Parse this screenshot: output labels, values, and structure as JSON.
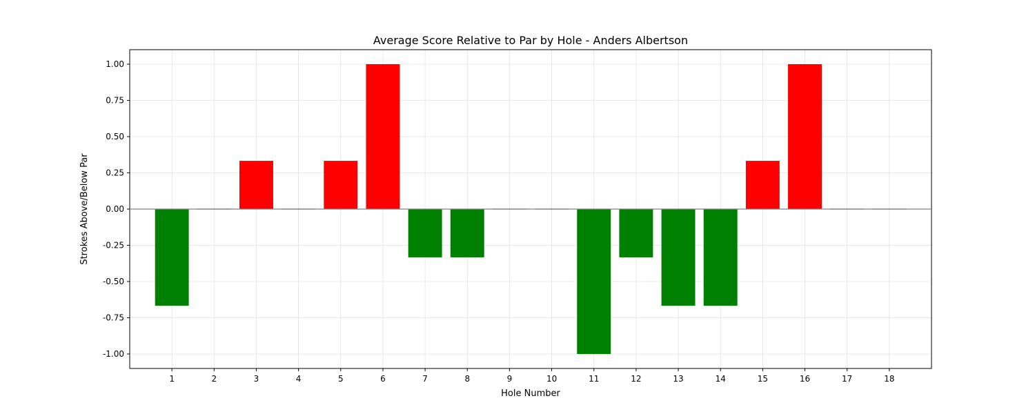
{
  "chart_data": {
    "type": "bar",
    "title": "Average Score Relative to Par by Hole - Anders Albertson",
    "xlabel": "Hole Number",
    "ylabel": "Strokes Above/Below Par",
    "categories": [
      "1",
      "2",
      "3",
      "4",
      "5",
      "6",
      "7",
      "8",
      "9",
      "10",
      "11",
      "12",
      "13",
      "14",
      "15",
      "16",
      "17",
      "18"
    ],
    "values": [
      -0.667,
      0,
      0.333,
      0,
      0.333,
      1.0,
      -0.333,
      -0.333,
      0,
      0,
      -1.0,
      -0.333,
      -0.667,
      -0.667,
      0.333,
      1.0,
      0,
      0
    ],
    "ylim": [
      -1.1,
      1.1
    ],
    "yticks": [
      "-1.00",
      "-0.75",
      "-0.50",
      "-0.25",
      "0.00",
      "0.25",
      "0.50",
      "0.75",
      "1.00"
    ],
    "grid": true,
    "colors": {
      "positive": "#ff0000",
      "negative": "#008000",
      "zero": "#808080",
      "zero_line": "#808080",
      "grid": "#e0e0e0"
    }
  }
}
